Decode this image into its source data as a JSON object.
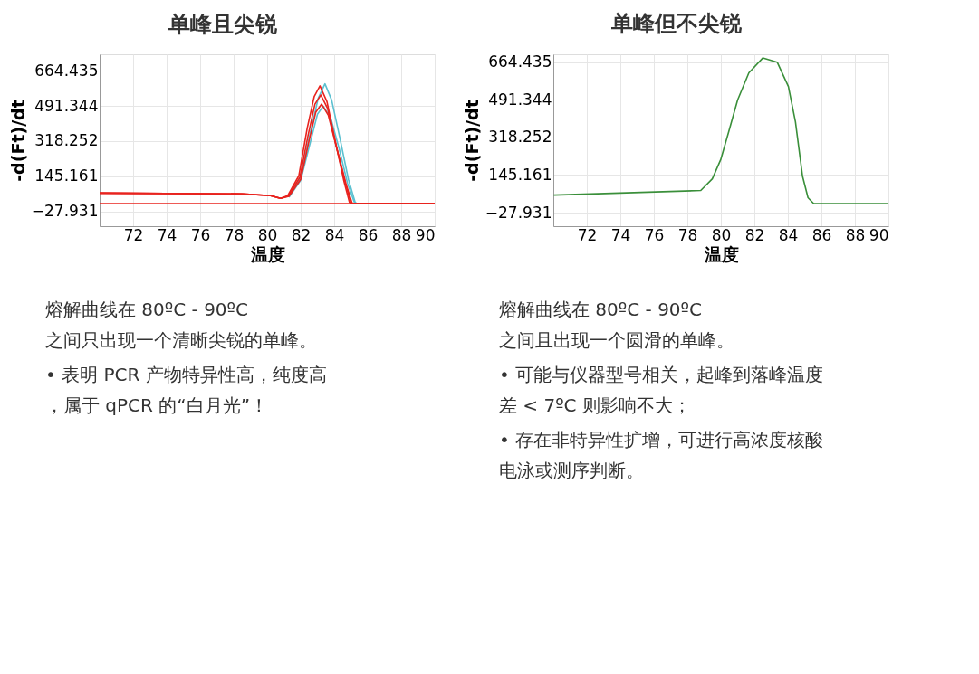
{
  "chart_data": [
    {
      "type": "line",
      "title": "单峰且尖锐",
      "xlabel": "温度",
      "ylabel": "-d(Ft)/dt",
      "xlim": [
        70,
        90
      ],
      "ylim": [
        -100,
        745
      ],
      "xticks": [
        72,
        74,
        76,
        78,
        80,
        82,
        84,
        86,
        88,
        90
      ],
      "yticks": [
        -27.931,
        145.161,
        318.252,
        491.344,
        664.435
      ],
      "grid": true,
      "series": [
        {
          "color": "#5bc0d0",
          "x": [
            81.3,
            82.0,
            82.6,
            83.05,
            83.45,
            83.85,
            84.35,
            84.85,
            85.25,
            85.35
          ],
          "values": [
            44,
            140,
            370,
            530,
            600,
            520,
            330,
            130,
            18,
            11
          ]
        },
        {
          "color": "#5bc0d0",
          "x": [
            81.3,
            82.0,
            82.6,
            83.0,
            83.35,
            83.8,
            84.3,
            84.8,
            85.2,
            85.3
          ],
          "values": [
            42,
            125,
            320,
            450,
            490,
            430,
            280,
            110,
            18,
            11
          ]
        },
        {
          "color": "#e8231e",
          "x": [
            70,
            78.54,
            80.21,
            80.8,
            81.22,
            81.89,
            82.39,
            82.81,
            83.15,
            83.57,
            84.07,
            84.58,
            84.91,
            84.99,
            90
          ],
          "values": [
            63,
            59,
            50,
            37,
            50,
            148,
            382,
            538,
            590,
            512,
            317,
            122,
            18,
            11,
            11
          ]
        },
        {
          "color": "#e8231e",
          "x": [
            70,
            78.5,
            80.2,
            80.8,
            81.25,
            81.95,
            82.45,
            82.85,
            83.2,
            83.6,
            84.1,
            84.65,
            84.98,
            85.05,
            90
          ],
          "values": [
            63,
            59,
            50,
            37,
            48,
            140,
            350,
            500,
            545,
            480,
            300,
            118,
            18,
            11,
            11
          ]
        },
        {
          "color": "#e8231e",
          "x": [
            70,
            78.5,
            80.2,
            80.8,
            81.3,
            82.0,
            82.5,
            82.9,
            83.25,
            83.65,
            84.15,
            84.7,
            85.05,
            85.1,
            90
          ],
          "values": [
            63,
            59,
            50,
            37,
            47,
            130,
            320,
            460,
            500,
            445,
            285,
            110,
            18,
            11,
            11
          ]
        },
        {
          "color": "#e8231e",
          "x": [
            70,
            90
          ],
          "values": [
            11,
            11
          ]
        }
      ],
      "annotations": [
        "熔解曲线在 80ºC - 90ºC 之间只出现一个清晰尖锐的单峰。",
        "• 表明 PCR 产物特异性高，纯度高，属于 qPCR 的“白月光”！"
      ]
    },
    {
      "type": "line",
      "title": "单峰但不尖锐",
      "xlabel": "温度",
      "ylabel": "-d(Ft)/dt",
      "xlim": [
        70,
        90
      ],
      "ylim": [
        -90,
        700
      ],
      "xticks": [
        72,
        74,
        76,
        78,
        80,
        82,
        84,
        86,
        88,
        90
      ],
      "yticks": [
        -27.931,
        145.161,
        318.252,
        491.344,
        664.435
      ],
      "grid": true,
      "series": [
        {
          "color": "#3a8f3a",
          "x": [
            70.03,
            78.8,
            79.49,
            79.99,
            80.5,
            81.0,
            81.67,
            82.5,
            83.36,
            84.03,
            84.45,
            84.87,
            85.2,
            85.54,
            90
          ],
          "values": [
            53,
            74,
            128,
            216,
            353,
            490,
            615,
            683,
            664,
            552,
            390,
            141,
            41,
            14,
            14
          ]
        }
      ],
      "annotations": [
        "熔解曲线在 80ºC - 90ºC 之间且出现一个圆滑的单峰。",
        "• 可能与仪器型号相关，起峰到落峰温度差 < 7ºC 则影响不大；",
        "• 存在非特异性扩增，可进行高浓度核酸电泳或测序判断。"
      ]
    }
  ]
}
